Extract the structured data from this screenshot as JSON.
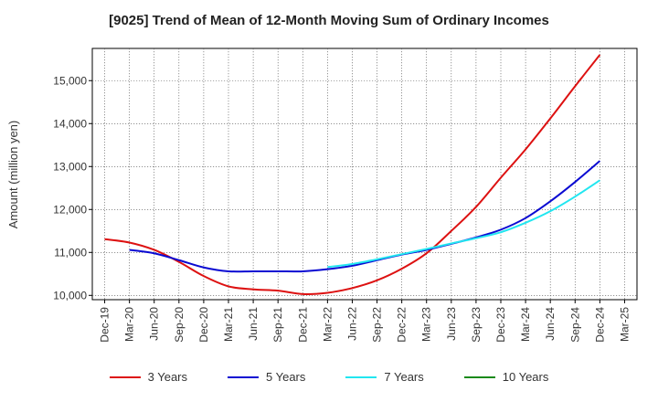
{
  "chart_data": {
    "type": "line",
    "title": "[9025]  Trend of Mean of 12-Month Moving Sum of Ordinary Incomes",
    "xlabel": "",
    "ylabel": "Amount (million yen)",
    "ylim": [
      9900,
      15750
    ],
    "yticks": [
      10000,
      11000,
      12000,
      13000,
      14000,
      15000
    ],
    "ytick_labels": [
      "10,000",
      "11,000",
      "12,000",
      "13,000",
      "14,000",
      "15,000"
    ],
    "categories": [
      "Dec-19",
      "Mar-20",
      "Jun-20",
      "Sep-20",
      "Dec-20",
      "Mar-21",
      "Jun-21",
      "Sep-21",
      "Dec-21",
      "Mar-22",
      "Jun-22",
      "Sep-22",
      "Dec-22",
      "Mar-23",
      "Jun-23",
      "Sep-23",
      "Dec-23",
      "Mar-24",
      "Jun-24",
      "Sep-24",
      "Dec-24",
      "Mar-25"
    ],
    "grid": true,
    "legend_position": "bottom",
    "series": [
      {
        "name": "3 Years",
        "color": "#dd1111",
        "values": [
          11310,
          11230,
          11060,
          10780,
          10450,
          10210,
          10140,
          10110,
          10030,
          10060,
          10170,
          10350,
          10620,
          10980,
          11500,
          12060,
          12740,
          13400,
          14120,
          14870,
          15600,
          null
        ]
      },
      {
        "name": "5 Years",
        "color": "#0a0ad2",
        "values": [
          null,
          11060,
          10980,
          10820,
          10650,
          10560,
          10560,
          10560,
          10560,
          10610,
          10690,
          10820,
          10950,
          11060,
          11200,
          11350,
          11530,
          11800,
          12190,
          12640,
          13130,
          null
        ]
      },
      {
        "name": "7 Years",
        "color": "#22e6f0",
        "values": [
          null,
          null,
          null,
          null,
          null,
          null,
          null,
          null,
          null,
          10660,
          10730,
          10840,
          10960,
          11080,
          11210,
          11330,
          11470,
          11690,
          11960,
          12300,
          12680,
          null
        ]
      },
      {
        "name": "10 Years",
        "color": "#1a8a1a",
        "values": [
          null,
          null,
          null,
          null,
          null,
          null,
          null,
          null,
          null,
          null,
          null,
          null,
          null,
          null,
          null,
          null,
          null,
          null,
          null,
          null,
          null,
          null
        ]
      }
    ]
  }
}
